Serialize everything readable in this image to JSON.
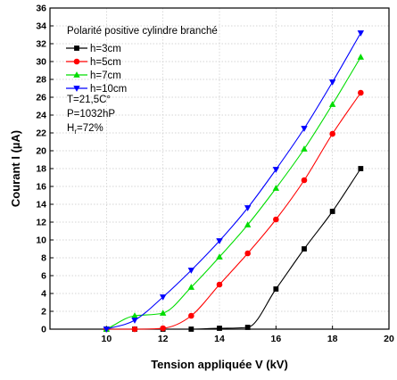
{
  "chart_data": {
    "type": "line",
    "xlabel": "Tension appliquée V (kV)",
    "ylabel": "Courant I (µA)",
    "xlim": [
      8,
      20
    ],
    "ylim": [
      0,
      36
    ],
    "xticks": [
      10,
      12,
      14,
      16,
      18,
      20
    ],
    "yticks": [
      0,
      2,
      4,
      6,
      8,
      10,
      12,
      14,
      16,
      18,
      20,
      22,
      24,
      26,
      28,
      30,
      32,
      34,
      36
    ],
    "grid": true,
    "legend_placement": "top-left",
    "legend_title": "Polarité positive cylindre branché",
    "annotations": [
      "T=21,5C°",
      "P=1032hP",
      "H=72%"
    ],
    "humidity_subscript": "r",
    "series": [
      {
        "name": "h=3cm",
        "color": "#000000",
        "marker": "square",
        "x": [
          10,
          11,
          12,
          13,
          14,
          15,
          16,
          17,
          18,
          19
        ],
        "y": [
          0,
          0,
          0,
          0,
          0.1,
          0.2,
          4.5,
          9.0,
          13.2,
          18.0
        ]
      },
      {
        "name": "h=5cm",
        "color": "#ff0000",
        "marker": "circle",
        "x": [
          10,
          11,
          12,
          13,
          14,
          15,
          16,
          17,
          18,
          19
        ],
        "y": [
          0,
          0,
          0.1,
          1.5,
          5.0,
          8.5,
          12.3,
          16.7,
          21.9,
          26.5
        ]
      },
      {
        "name": "h=7cm",
        "color": "#00dd00",
        "marker": "triangle-up",
        "x": [
          10,
          11,
          12,
          13,
          14,
          15,
          16,
          17,
          18,
          19
        ],
        "y": [
          0,
          1.5,
          1.8,
          4.7,
          8.1,
          11.7,
          15.8,
          20.2,
          25.2,
          30.5
        ]
      },
      {
        "name": "h=10cm",
        "color": "#0000ff",
        "marker": "triangle-down",
        "x": [
          10,
          11,
          12,
          13,
          14,
          15,
          16,
          17,
          18,
          19
        ],
        "y": [
          0,
          1.0,
          3.6,
          6.6,
          9.9,
          13.6,
          17.9,
          22.5,
          27.7,
          33.2
        ]
      }
    ]
  }
}
